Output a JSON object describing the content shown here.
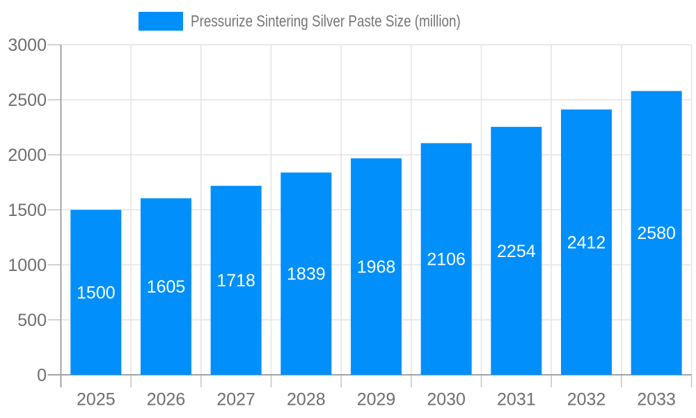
{
  "chart_data": {
    "type": "bar",
    "title": "Pressurize Sintering Silver Paste Size (million)",
    "categories": [
      "2025",
      "2026",
      "2027",
      "2028",
      "2029",
      "2030",
      "2031",
      "2032",
      "2033"
    ],
    "values": [
      1500,
      1605,
      1718,
      1839,
      1968,
      2106,
      2254,
      2412,
      2580
    ],
    "xlabel": "",
    "ylabel": "",
    "ylim": [
      0,
      3000
    ],
    "yticks": [
      0,
      500,
      1000,
      1500,
      2000,
      2500,
      3000
    ],
    "grid": true,
    "legend_position": "top",
    "value_labels": "inside-center",
    "colors": {
      "bar": "#008FFB",
      "value_label": "#FFFFFF",
      "axis_label": "#6E6E6E",
      "title": "#757575",
      "grid_line": "#E3E3E3",
      "axis_line": "#A3A3A3",
      "tick": "#C4C4C4",
      "background": "#FFFFFF"
    }
  }
}
